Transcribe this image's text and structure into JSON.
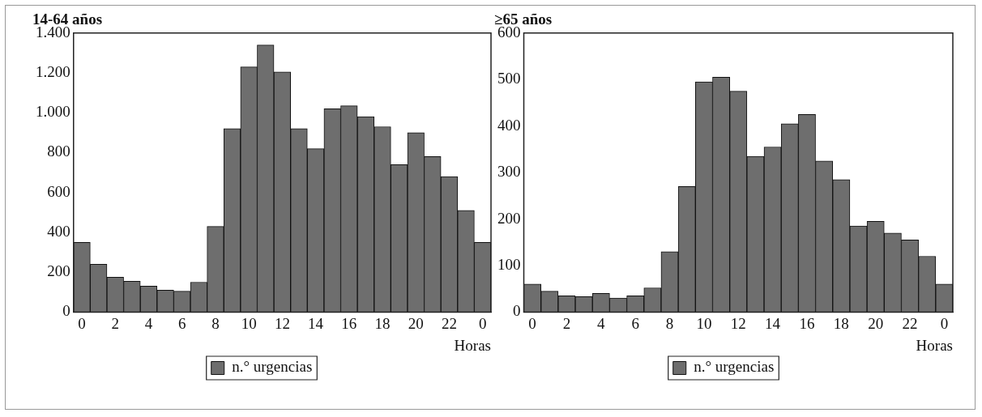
{
  "chart_data": [
    {
      "type": "bar",
      "title": "14-64 años",
      "xlabel": "Horas",
      "categories": [
        "0",
        null,
        "2",
        null,
        "4",
        null,
        "6",
        null,
        "8",
        null,
        "10",
        null,
        "12",
        null,
        "14",
        null,
        "16",
        null,
        "18",
        null,
        "20",
        null,
        "22",
        null,
        "0"
      ],
      "series": [
        {
          "name": "n.° urgencias",
          "color": "#6e6e6e",
          "values": [
            350,
            240,
            175,
            155,
            130,
            110,
            105,
            150,
            430,
            920,
            1230,
            1340,
            1205,
            920,
            820,
            1020,
            1035,
            980,
            930,
            740,
            900,
            780,
            680,
            510,
            350
          ]
        }
      ],
      "ylim": [
        0,
        1400
      ],
      "yticks": [
        0,
        200,
        400,
        600,
        800,
        {
          "value": 1000,
          "label": "1.000"
        },
        {
          "value": 1200,
          "label": "1.200"
        },
        {
          "value": 1400,
          "label": "1.400"
        }
      ],
      "legend": "bottom"
    },
    {
      "type": "bar",
      "title": "≥65 años",
      "xlabel": "Horas",
      "categories": [
        "0",
        null,
        "2",
        null,
        "4",
        null,
        "6",
        null,
        "8",
        null,
        "10",
        null,
        "12",
        null,
        "14",
        null,
        "16",
        null,
        "18",
        null,
        "20",
        null,
        "22",
        null,
        "0"
      ],
      "series": [
        {
          "name": "n.° urgencias",
          "color": "#6e6e6e",
          "values": [
            60,
            45,
            35,
            33,
            40,
            30,
            35,
            52,
            130,
            270,
            495,
            505,
            475,
            335,
            355,
            405,
            425,
            325,
            285,
            185,
            195,
            170,
            155,
            120,
            60
          ]
        }
      ],
      "ylim": [
        0,
        600
      ],
      "yticks": [
        0,
        100,
        200,
        300,
        400,
        500,
        600
      ],
      "legend": "bottom"
    }
  ]
}
